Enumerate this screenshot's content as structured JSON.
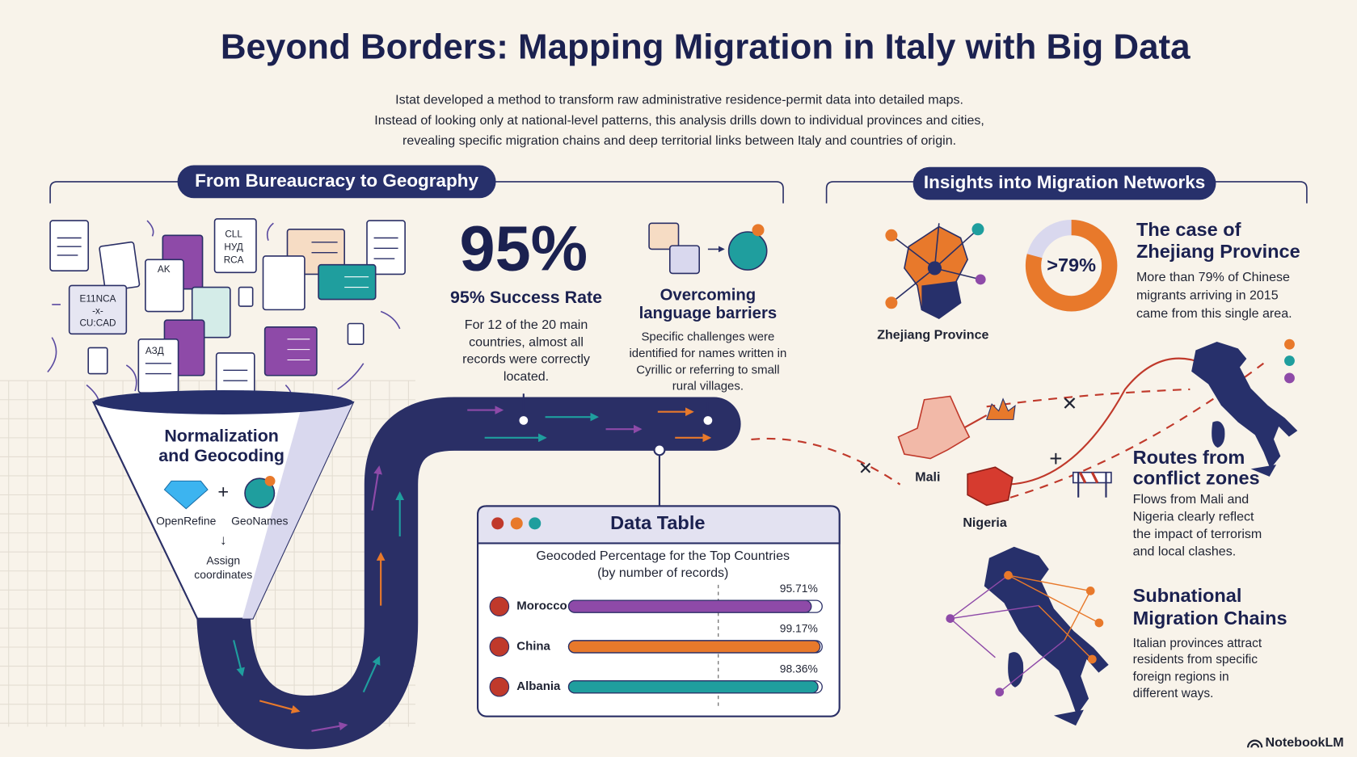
{
  "title": "Beyond Borders: Mapping Migration in Italy with Big Data",
  "intro": [
    "Istat developed a method to transform raw administrative residence-permit data into detailed maps.",
    "Instead of looking only at national-level patterns, this analysis drills down to individual provinces and cities,",
    "revealing specific migration chains and deep territorial links between Italy and countries of origin."
  ],
  "bureaucracy": {
    "heading": "From Bureaucracy to Geography",
    "doc_glyphs": [
      "CLL",
      "НУД",
      "RCA",
      "E11NCA",
      "-x-",
      "CU:CAD",
      "AK",
      "АЗД"
    ],
    "funnel": {
      "title": [
        "Normalization",
        "and Geocoding"
      ],
      "tools": [
        "OpenRefine",
        "GeoNames"
      ],
      "step": [
        "Assign",
        "coordinates"
      ]
    },
    "success": {
      "big": "95%",
      "title": "95% Success Rate",
      "text": [
        "For 12 of the 20 main",
        "countries, almost all",
        "records were correctly",
        "located."
      ]
    },
    "language": {
      "title": [
        "Overcoming",
        "language barriers"
      ],
      "text": [
        "Specific challenges were",
        "identified for names written in",
        "Cyrillic or referring to small",
        "rural villages."
      ]
    }
  },
  "chart_data": {
    "type": "bar",
    "title": "Data Table",
    "subtitle": [
      "Geocoded Percentage for the Top Countries",
      "(by number of records)"
    ],
    "categories": [
      "Morocco",
      "China",
      "Albania"
    ],
    "values": [
      95.71,
      99.17,
      98.36
    ],
    "value_labels": [
      "95.71%",
      "99.17%",
      "98.36%"
    ],
    "colors": [
      "#8e4aa8",
      "#e8792b",
      "#1f9e9e"
    ],
    "xlim": [
      0,
      100
    ]
  },
  "insights": {
    "heading": "Insights into Migration Networks",
    "zhejiang": {
      "title": [
        "The case of",
        "Zhejiang Province"
      ],
      "share": {
        "value": 79,
        "label": ">79%"
      },
      "map_label": "Zhejiang Province",
      "text": [
        "More than 79% of Chinese",
        "migrants arriving in 2015",
        "came from this single area."
      ]
    },
    "conflict": {
      "title": [
        "Routes from",
        "conflict zones"
      ],
      "places": [
        "Mali",
        "Nigeria"
      ],
      "text": [
        "Flows from Mali and",
        "Nigeria clearly reflect",
        "the impact of terrorism",
        "and local clashes."
      ]
    },
    "chains": {
      "title": [
        "Subnational",
        "Migration Chains"
      ],
      "text": [
        "Italian provinces attract",
        "residents from specific",
        "foreign regions in",
        "different ways."
      ]
    }
  },
  "brand": "NotebookLM"
}
